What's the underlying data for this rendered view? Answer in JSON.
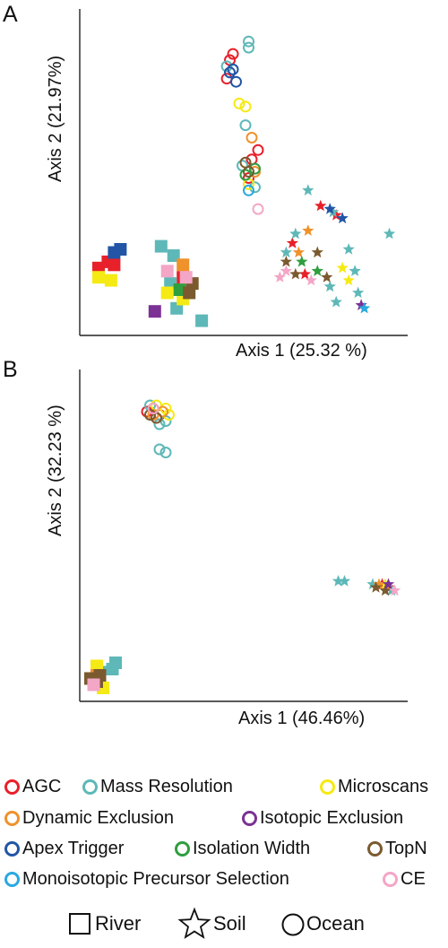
{
  "panels": {
    "a": {
      "letter": "A",
      "xlabel": "Axis 1 (25.32 %)",
      "ylabel": "Axis 2 (21.97%)"
    },
    "b": {
      "letter": "B",
      "xlabel": "Axis 1 (46.46%)",
      "ylabel": "Axis 2 (32.23 %)"
    }
  },
  "legend": {
    "colors": [
      {
        "label": "AGC",
        "color": "#e8202a"
      },
      {
        "label": "Mass Resolution",
        "color": "#5fb8b8"
      },
      {
        "label": "Microscans",
        "color": "#f5ea14"
      },
      {
        "label": "Dynamic Exclusion",
        "color": "#f0922b"
      },
      {
        "label": "Isotopic Exclusion",
        "color": "#7b3294"
      },
      {
        "label": "Apex Trigger",
        "color": "#2255a5"
      },
      {
        "label": "Isolation Width",
        "color": "#2e9e3f"
      },
      {
        "label": "TopN",
        "color": "#7a5a2e"
      },
      {
        "label": "Monoisotopic Precursor Selection",
        "color": "#2aa9e0"
      },
      {
        "label": "CE",
        "color": "#f4a6c7"
      }
    ],
    "shapes": [
      {
        "label": "River",
        "shape": "square"
      },
      {
        "label": "Soil",
        "shape": "star"
      },
      {
        "label": "Ocean",
        "shape": "circle"
      }
    ]
  },
  "chart_data": [
    {
      "type": "scatter",
      "xlabel": "Axis 1 (25.32 %)",
      "ylabel": "Axis 2 (21.97%)",
      "xlim": [
        0,
        100
      ],
      "ylim": [
        0,
        100
      ],
      "grid": false,
      "series": [
        {
          "name": "AGC",
          "color": "#e8202a",
          "points": [
            {
              "shape": "square",
              "x": 4,
              "y": 20
            },
            {
              "shape": "square",
              "x": 7,
              "y": 22
            },
            {
              "shape": "square",
              "x": 9,
              "y": 21
            },
            {
              "shape": "square",
              "x": 31,
              "y": 17
            },
            {
              "shape": "circle",
              "x": 47,
              "y": 89
            },
            {
              "shape": "circle",
              "x": 46,
              "y": 87
            },
            {
              "shape": "circle",
              "x": 45,
              "y": 81
            },
            {
              "shape": "circle",
              "x": 55,
              "y": 58
            },
            {
              "shape": "circle",
              "x": 53,
              "y": 55
            },
            {
              "shape": "circle",
              "x": 52,
              "y": 49
            },
            {
              "shape": "star",
              "x": 80,
              "y": 37
            },
            {
              "shape": "star",
              "x": 75,
              "y": 40
            },
            {
              "shape": "star",
              "x": 66,
              "y": 28
            },
            {
              "shape": "star",
              "x": 70,
              "y": 18
            }
          ]
        },
        {
          "name": "Mass Resolution",
          "color": "#5fb8b8",
          "points": [
            {
              "shape": "square",
              "x": 24,
              "y": 27
            },
            {
              "shape": "square",
              "x": 28,
              "y": 24
            },
            {
              "shape": "square",
              "x": 27,
              "y": 15
            },
            {
              "shape": "square",
              "x": 29,
              "y": 7
            },
            {
              "shape": "square",
              "x": 37,
              "y": 3
            },
            {
              "shape": "circle",
              "x": 52,
              "y": 93
            },
            {
              "shape": "circle",
              "x": 52,
              "y": 91
            },
            {
              "shape": "circle",
              "x": 45,
              "y": 85
            },
            {
              "shape": "circle",
              "x": 51,
              "y": 66
            },
            {
              "shape": "circle",
              "x": 50,
              "y": 53
            },
            {
              "shape": "circle",
              "x": 54,
              "y": 46
            },
            {
              "shape": "star",
              "x": 79,
              "y": 38
            },
            {
              "shape": "star",
              "x": 71,
              "y": 45
            },
            {
              "shape": "star",
              "x": 67,
              "y": 31
            },
            {
              "shape": "star",
              "x": 64,
              "y": 25
            },
            {
              "shape": "star",
              "x": 84,
              "y": 26
            },
            {
              "shape": "star",
              "x": 86,
              "y": 19
            },
            {
              "shape": "star",
              "x": 87,
              "y": 12
            },
            {
              "shape": "star",
              "x": 97,
              "y": 31
            },
            {
              "shape": "star",
              "x": 78,
              "y": 14
            },
            {
              "shape": "star",
              "x": 80,
              "y": 9
            }
          ]
        },
        {
          "name": "Microscans",
          "color": "#f5ea14",
          "points": [
            {
              "shape": "square",
              "x": 4,
              "y": 17
            },
            {
              "shape": "square",
              "x": 8,
              "y": 16
            },
            {
              "shape": "square",
              "x": 26,
              "y": 12
            },
            {
              "shape": "square",
              "x": 31,
              "y": 10
            },
            {
              "shape": "circle",
              "x": 49,
              "y": 73
            },
            {
              "shape": "circle",
              "x": 51,
              "y": 72
            },
            {
              "shape": "circle",
              "x": 52,
              "y": 47
            },
            {
              "shape": "star",
              "x": 82,
              "y": 20
            },
            {
              "shape": "star",
              "x": 84,
              "y": 16
            }
          ]
        },
        {
          "name": "Dynamic Exclusion",
          "color": "#f0922b",
          "points": [
            {
              "shape": "square",
              "x": 31,
              "y": 21
            },
            {
              "shape": "circle",
              "x": 53,
              "y": 62
            },
            {
              "shape": "circle",
              "x": 54,
              "y": 51
            },
            {
              "shape": "star",
              "x": 71,
              "y": 32
            },
            {
              "shape": "star",
              "x": 68,
              "y": 25
            }
          ]
        },
        {
          "name": "Isotopic Exclusion",
          "color": "#7b3294",
          "points": [
            {
              "shape": "square",
              "x": 22,
              "y": 6
            },
            {
              "shape": "star",
              "x": 88,
              "y": 8
            }
          ]
        },
        {
          "name": "Apex Trigger",
          "color": "#2255a5",
          "points": [
            {
              "shape": "square",
              "x": 9,
              "y": 25
            },
            {
              "shape": "square",
              "x": 11,
              "y": 26
            },
            {
              "shape": "circle",
              "x": 47,
              "y": 84
            },
            {
              "shape": "circle",
              "x": 46,
              "y": 83
            },
            {
              "shape": "circle",
              "x": 48,
              "y": 80
            },
            {
              "shape": "star",
              "x": 78,
              "y": 39
            },
            {
              "shape": "star",
              "x": 82,
              "y": 36
            }
          ]
        },
        {
          "name": "Isolation Width",
          "color": "#2e9e3f",
          "points": [
            {
              "shape": "square",
              "x": 30,
              "y": 13
            },
            {
              "shape": "circle",
              "x": 54,
              "y": 52
            },
            {
              "shape": "circle",
              "x": 51,
              "y": 50
            },
            {
              "shape": "star",
              "x": 74,
              "y": 19
            },
            {
              "shape": "star",
              "x": 69,
              "y": 22
            }
          ]
        },
        {
          "name": "TopN",
          "color": "#7a5a2e",
          "points": [
            {
              "shape": "square",
              "x": 34,
              "y": 15
            },
            {
              "shape": "square",
              "x": 33,
              "y": 12
            },
            {
              "shape": "circle",
              "x": 51,
              "y": 54
            },
            {
              "shape": "circle",
              "x": 52,
              "y": 51
            },
            {
              "shape": "star",
              "x": 64,
              "y": 22
            },
            {
              "shape": "star",
              "x": 74,
              "y": 25
            },
            {
              "shape": "star",
              "x": 67,
              "y": 18
            },
            {
              "shape": "star",
              "x": 77,
              "y": 17
            }
          ]
        },
        {
          "name": "Monoisotopic Precursor Selection",
          "color": "#2aa9e0",
          "points": [
            {
              "shape": "circle",
              "x": 52,
              "y": 45
            },
            {
              "shape": "star",
              "x": 89,
              "y": 7
            }
          ]
        },
        {
          "name": "CE",
          "color": "#f4a6c7",
          "points": [
            {
              "shape": "square",
              "x": 26,
              "y": 19
            },
            {
              "shape": "square",
              "x": 32,
              "y": 17
            },
            {
              "shape": "circle",
              "x": 55,
              "y": 39
            },
            {
              "shape": "star",
              "x": 62,
              "y": 17
            },
            {
              "shape": "star",
              "x": 64,
              "y": 19
            },
            {
              "shape": "star",
              "x": 72,
              "y": 16
            }
          ]
        }
      ]
    },
    {
      "type": "scatter",
      "xlabel": "Axis 1 (46.46%)",
      "ylabel": "Axis 2 (32.23 %)",
      "xlim": [
        0,
        100
      ],
      "ylim": [
        0,
        100
      ],
      "grid": false,
      "series": [
        {
          "name": "AGC",
          "color": "#e8202a",
          "points": [
            {
              "shape": "circle",
              "x": 20,
              "y": 90
            },
            {
              "shape": "circle",
              "x": 22,
              "y": 91
            },
            {
              "shape": "circle",
              "x": 24,
              "y": 89
            },
            {
              "shape": "square",
              "x": 3,
              "y": 4
            },
            {
              "shape": "star",
              "x": 95,
              "y": 35
            },
            {
              "shape": "star",
              "x": 97,
              "y": 34
            }
          ]
        },
        {
          "name": "Mass Resolution",
          "color": "#5fb8b8",
          "points": [
            {
              "shape": "circle",
              "x": 21,
              "y": 92
            },
            {
              "shape": "circle",
              "x": 24,
              "y": 86
            },
            {
              "shape": "circle",
              "x": 26,
              "y": 87
            },
            {
              "shape": "circle",
              "x": 24,
              "y": 78
            },
            {
              "shape": "circle",
              "x": 26,
              "y": 77
            },
            {
              "shape": "square",
              "x": 10,
              "y": 10
            },
            {
              "shape": "square",
              "x": 9,
              "y": 8
            },
            {
              "shape": "square",
              "x": 5,
              "y": 7
            },
            {
              "shape": "star",
              "x": 81,
              "y": 36
            },
            {
              "shape": "star",
              "x": 83,
              "y": 36
            },
            {
              "shape": "star",
              "x": 92,
              "y": 35
            },
            {
              "shape": "star",
              "x": 98,
              "y": 33
            }
          ]
        },
        {
          "name": "Microscans",
          "color": "#f5ea14",
          "points": [
            {
              "shape": "circle",
              "x": 23,
              "y": 92
            },
            {
              "shape": "circle",
              "x": 26,
              "y": 91
            },
            {
              "shape": "circle",
              "x": 27,
              "y": 89
            },
            {
              "shape": "square",
              "x": 4,
              "y": 9
            },
            {
              "shape": "square",
              "x": 6,
              "y": 2
            },
            {
              "shape": "star",
              "x": 96,
              "y": 35
            }
          ]
        },
        {
          "name": "Dynamic Exclusion",
          "color": "#f0922b",
          "points": [
            {
              "shape": "circle",
              "x": 22,
              "y": 89
            },
            {
              "shape": "circle",
              "x": 25,
              "y": 90
            },
            {
              "shape": "square",
              "x": 4,
              "y": 6
            },
            {
              "shape": "star",
              "x": 94,
              "y": 35
            }
          ]
        },
        {
          "name": "TopN",
          "color": "#7a5a2e",
          "points": [
            {
              "shape": "circle",
              "x": 23,
              "y": 88
            },
            {
              "shape": "circle",
              "x": 21,
              "y": 89
            },
            {
              "shape": "square",
              "x": 2,
              "y": 5
            },
            {
              "shape": "square",
              "x": 4,
              "y": 4
            },
            {
              "shape": "square",
              "x": 5,
              "y": 6
            },
            {
              "shape": "star",
              "x": 93,
              "y": 34
            },
            {
              "shape": "star",
              "x": 96,
              "y": 33
            }
          ]
        },
        {
          "name": "Isotopic Exclusion",
          "color": "#7b3294",
          "points": [
            {
              "shape": "star",
              "x": 97,
              "y": 35
            }
          ]
        },
        {
          "name": "CE",
          "color": "#f4a6c7",
          "points": [
            {
              "shape": "circle",
              "x": 22,
              "y": 91
            },
            {
              "shape": "square",
              "x": 3,
              "y": 3
            },
            {
              "shape": "star",
              "x": 99,
              "y": 33
            }
          ]
        }
      ]
    }
  ]
}
